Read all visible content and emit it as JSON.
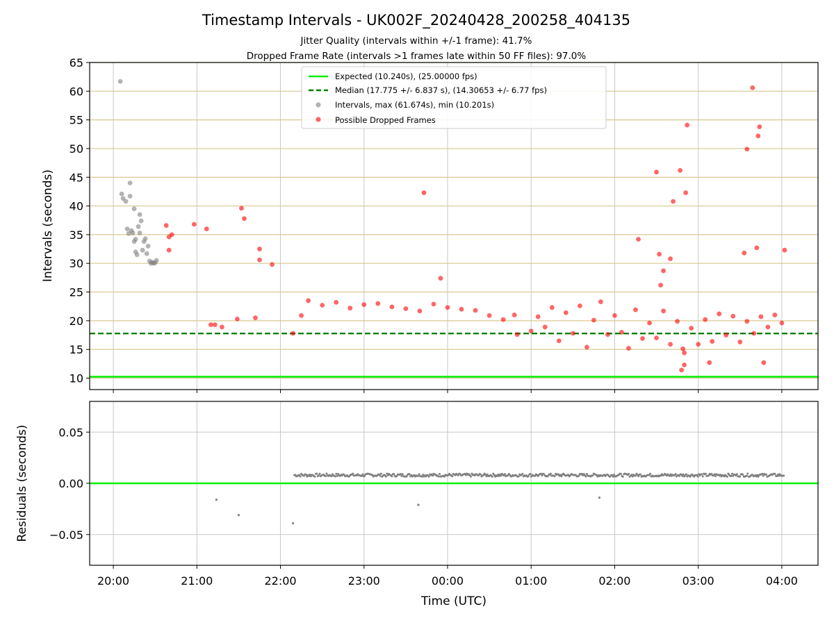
{
  "chart_data": [
    {
      "type": "scatter",
      "title": "Timestamp Intervals - UK002F_20240428_200258_404135",
      "subtitle_lines": [
        "Jitter Quality (intervals within +/-1 frame): 41.7%",
        "Dropped Frame Rate (intervals >1 frames late within 50 FF files): 97.0%"
      ],
      "xlabel": "",
      "ylabel": "Intervals (seconds)",
      "ylim": [
        8,
        65
      ],
      "yticks": [
        10,
        15,
        20,
        25,
        30,
        35,
        40,
        45,
        50,
        55,
        60,
        65
      ],
      "grid": true,
      "legend_position": "upper center",
      "reference_lines": [
        {
          "name": "Expected (10.240s), (25.00000 fps)",
          "y": 10.24,
          "color": "#00ee00",
          "style": "solid"
        },
        {
          "name": "Median (17.775 +/- 6.837 s), (14.30653 +/- 6.77 fps)",
          "y": 17.775,
          "color": "#008000",
          "style": "dashed"
        }
      ],
      "series": [
        {
          "name": "Intervals, max (61.674s), min (10.201s)",
          "color": "#808080",
          "points": [
            [
              "20:05",
              61.7
            ],
            [
              "20:06",
              42.1
            ],
            [
              "20:07",
              41.3
            ],
            [
              "20:09",
              40.8
            ],
            [
              "20:12",
              44.0
            ],
            [
              "20:12",
              41.7
            ],
            [
              "20:10",
              36.0
            ],
            [
              "20:11",
              35.2
            ],
            [
              "20:13",
              35.7
            ],
            [
              "20:14",
              35.3
            ],
            [
              "20:15",
              39.5
            ],
            [
              "20:15",
              33.8
            ],
            [
              "20:16",
              34.2
            ],
            [
              "20:16",
              32.0
            ],
            [
              "20:17",
              31.5
            ],
            [
              "20:18",
              36.4
            ],
            [
              "20:19",
              38.5
            ],
            [
              "20:19",
              35.3
            ],
            [
              "20:20",
              37.4
            ],
            [
              "20:21",
              32.3
            ],
            [
              "20:22",
              33.8
            ],
            [
              "20:23",
              34.3
            ],
            [
              "20:24",
              31.7
            ],
            [
              "20:25",
              33.0
            ],
            [
              "20:26",
              30.4
            ],
            [
              "20:27",
              30.0
            ],
            [
              "20:28",
              30.2
            ],
            [
              "20:29",
              30.0
            ],
            [
              "20:30",
              30.1
            ],
            [
              "20:31",
              30.5
            ]
          ]
        },
        {
          "name": "Possible Dropped Frames",
          "color": "#ff0000",
          "points": [
            [
              "20:38",
              36.6
            ],
            [
              "20:40",
              34.6
            ],
            [
              "20:40",
              32.3
            ],
            [
              "20:42",
              35.0
            ],
            [
              "20:58",
              36.8
            ],
            [
              "21:07",
              36.0
            ],
            [
              "21:10",
              19.3
            ],
            [
              "21:13",
              19.3
            ],
            [
              "21:18",
              18.9
            ],
            [
              "21:29",
              20.3
            ],
            [
              "21:32",
              39.6
            ],
            [
              "21:34",
              37.8
            ],
            [
              "21:42",
              20.5
            ],
            [
              "21:45",
              32.5
            ],
            [
              "21:45",
              30.6
            ],
            [
              "21:54",
              29.8
            ],
            [
              "22:09",
              17.8
            ],
            [
              "23:55",
              27.4
            ],
            [
              "23:43",
              42.3
            ],
            [
              "22:15",
              20.9
            ],
            [
              "22:20",
              23.5
            ],
            [
              "22:30",
              22.7
            ],
            [
              "22:40",
              23.2
            ],
            [
              "22:50",
              22.2
            ],
            [
              "23:00",
              22.8
            ],
            [
              "23:10",
              23.0
            ],
            [
              "23:20",
              22.4
            ],
            [
              "23:30",
              22.1
            ],
            [
              "23:40",
              21.7
            ],
            [
              "23:50",
              22.9
            ],
            [
              "00:00",
              22.3
            ],
            [
              "00:10",
              22.0
            ],
            [
              "00:20",
              21.8
            ],
            [
              "00:30",
              20.9
            ],
            [
              "00:40",
              20.2
            ],
            [
              "00:48",
              21.0
            ],
            [
              "00:50",
              17.6
            ],
            [
              "01:00",
              18.2
            ],
            [
              "01:05",
              20.7
            ],
            [
              "01:10",
              18.9
            ],
            [
              "01:15",
              22.3
            ],
            [
              "01:20",
              16.5
            ],
            [
              "01:25",
              21.4
            ],
            [
              "01:30",
              17.8
            ],
            [
              "01:35",
              22.6
            ],
            [
              "01:40",
              15.4
            ],
            [
              "01:45",
              20.1
            ],
            [
              "01:50",
              23.3
            ],
            [
              "01:55",
              17.6
            ],
            [
              "02:00",
              20.9
            ],
            [
              "02:05",
              18.0
            ],
            [
              "02:10",
              15.2
            ],
            [
              "02:15",
              21.9
            ],
            [
              "02:20",
              16.9
            ],
            [
              "02:25",
              19.6
            ],
            [
              "02:30",
              17.0
            ],
            [
              "02:35",
              21.7
            ],
            [
              "02:40",
              15.9
            ],
            [
              "02:45",
              19.9
            ],
            [
              "02:50",
              14.4
            ],
            [
              "02:55",
              18.7
            ],
            [
              "03:00",
              15.9
            ],
            [
              "03:05",
              20.2
            ],
            [
              "03:10",
              16.4
            ],
            [
              "03:15",
              21.2
            ],
            [
              "03:20",
              17.5
            ],
            [
              "03:25",
              20.8
            ],
            [
              "03:30",
              16.3
            ],
            [
              "03:35",
              19.9
            ],
            [
              "03:40",
              17.8
            ],
            [
              "03:45",
              20.7
            ],
            [
              "03:50",
              18.9
            ],
            [
              "03:55",
              21.0
            ],
            [
              "04:00",
              19.6
            ],
            [
              "02:17",
              34.2
            ],
            [
              "02:30",
              45.9
            ],
            [
              "02:32",
              31.6
            ],
            [
              "02:35",
              28.7
            ],
            [
              "02:40",
              30.8
            ],
            [
              "02:42",
              40.8
            ],
            [
              "02:47",
              46.2
            ],
            [
              "02:51",
              42.3
            ],
            [
              "02:52",
              54.1
            ],
            [
              "03:35",
              49.9
            ],
            [
              "03:39",
              60.6
            ],
            [
              "03:43",
              52.2
            ],
            [
              "03:44",
              53.8
            ],
            [
              "03:42",
              32.7
            ],
            [
              "03:33",
              31.8
            ],
            [
              "04:02",
              32.3
            ],
            [
              "02:33",
              26.2
            ],
            [
              "02:49",
              15.1
            ],
            [
              "02:50",
              12.3
            ],
            [
              "02:48",
              11.4
            ],
            [
              "03:08",
              12.7
            ],
            [
              "03:47",
              12.7
            ]
          ]
        }
      ]
    },
    {
      "type": "scatter",
      "title": "",
      "xlabel": "Time (UTC)",
      "ylabel": "Residuals (seconds)",
      "ylim": [
        -0.08,
        0.08
      ],
      "yticks": [
        0.05,
        0.0,
        -0.05
      ],
      "ytick_labels": [
        "0.05",
        "0.00",
        "−0.05"
      ],
      "xticks": [
        "20:00",
        "21:00",
        "22:00",
        "23:00",
        "00:00",
        "01:00",
        "02:00",
        "03:00",
        "04:00"
      ],
      "xlim": [
        "19:43",
        "04:26"
      ],
      "grid": true,
      "reference_lines": [
        {
          "name": "",
          "y": 0.0,
          "color": "#00ee00",
          "style": "solid"
        }
      ],
      "series": [
        {
          "name": "",
          "color": "#808080",
          "points": [
            [
              "21:14",
              -0.016
            ],
            [
              "21:30",
              -0.031
            ],
            [
              "22:09",
              -0.039
            ],
            [
              "23:39",
              -0.021
            ],
            [
              "01:49",
              -0.014
            ]
          ],
          "band": {
            "x_from": "22:10",
            "x_to": "04:02",
            "center": 0.008,
            "spread": 0.0015
          }
        }
      ]
    }
  ]
}
